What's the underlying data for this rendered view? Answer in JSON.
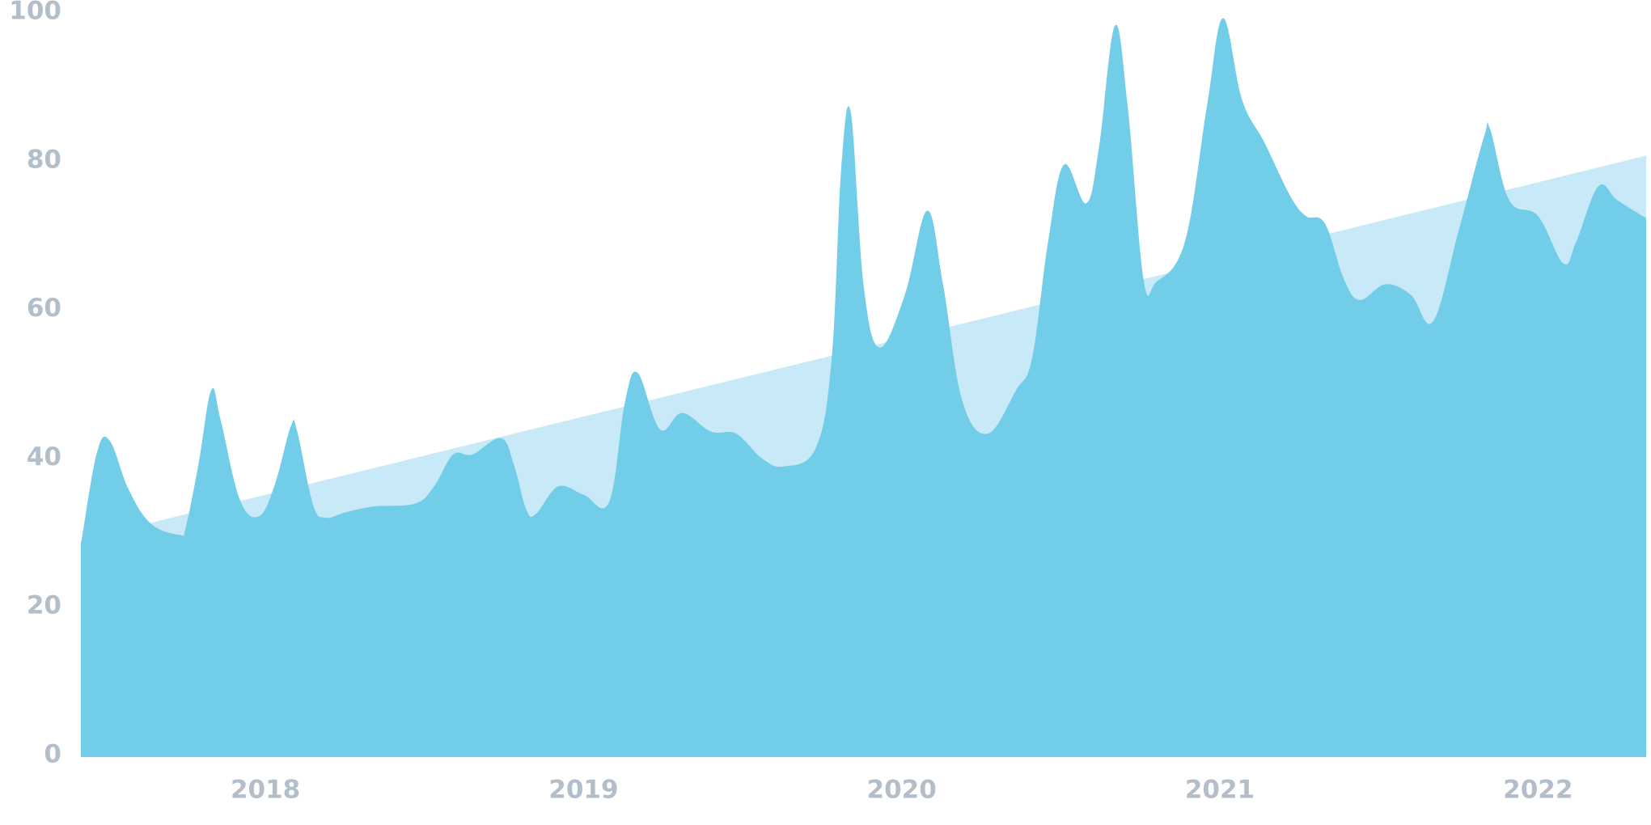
{
  "chart_data": {
    "type": "area",
    "xlim": [
      2017.42,
      2022.34
    ],
    "xticks": [
      2018,
      2019,
      2020,
      2021,
      2022
    ],
    "ylim": [
      0,
      100
    ],
    "yticks": [
      0,
      20,
      40,
      60,
      80,
      100
    ],
    "series": [
      {
        "color": "#c8e9f7",
        "x": [
          2017.42,
          2022.34
        ],
        "values": [
          29.2,
          80.9
        ]
      },
      {
        "color": "#72cde9",
        "x": [
          2017.42,
          2017.47,
          2017.51,
          2017.57,
          2017.64,
          2017.73,
          2017.75,
          2017.79,
          2017.83,
          2017.86,
          2017.92,
          2017.98,
          2018.03,
          2018.08,
          2018.1,
          2018.15,
          2018.19,
          2018.25,
          2018.34,
          2018.47,
          2018.53,
          2018.59,
          2018.65,
          2018.74,
          2018.78,
          2018.82,
          2018.85,
          2018.92,
          2019.0,
          2019.08,
          2019.13,
          2019.17,
          2019.24,
          2019.31,
          2019.4,
          2019.48,
          2019.56,
          2019.63,
          2019.73,
          2019.78,
          2019.81,
          2019.84,
          2019.88,
          2019.93,
          2020.01,
          2020.08,
          2020.13,
          2020.19,
          2020.27,
          2020.36,
          2020.41,
          2020.46,
          2020.51,
          2020.58,
          2020.62,
          2020.67,
          2020.71,
          2020.76,
          2020.8,
          2020.89,
          2020.96,
          2021.01,
          2021.07,
          2021.14,
          2021.22,
          2021.27,
          2021.33,
          2021.39,
          2021.44,
          2021.52,
          2021.6,
          2021.67,
          2021.75,
          2021.83,
          2021.85,
          2021.91,
          2022.0,
          2022.08,
          2022.12,
          2022.19,
          2022.25,
          2022.34
        ],
        "values": [
          28.6,
          40.9,
          42.6,
          36,
          31.4,
          29.9,
          31,
          39.5,
          49.4,
          45.2,
          34.6,
          32.4,
          36.7,
          44.5,
          43.8,
          33.9,
          32.2,
          32.9,
          33.7,
          34.1,
          36.4,
          40.7,
          40.7,
          42.9,
          39.5,
          33.3,
          32.7,
          36.4,
          35.3,
          34.3,
          47.7,
          51.7,
          44.1,
          46.3,
          43.8,
          43.5,
          40.2,
          39.1,
          41.6,
          53.7,
          79.2,
          86.7,
          63.6,
          55.1,
          62.2,
          73.5,
          63.6,
          48,
          43.5,
          49.4,
          53.7,
          69.3,
          79.7,
          74.5,
          82,
          98.4,
          87.7,
          64.3,
          63.9,
          69.3,
          87.7,
          99.4,
          88.4,
          82.7,
          75.6,
          72.8,
          71.8,
          64.3,
          61.5,
          63.6,
          62.2,
          58.6,
          70.7,
          83.4,
          84.4,
          74.9,
          72.8,
          66.4,
          69.3,
          76.8,
          74.9,
          72.5
        ]
      }
    ]
  }
}
